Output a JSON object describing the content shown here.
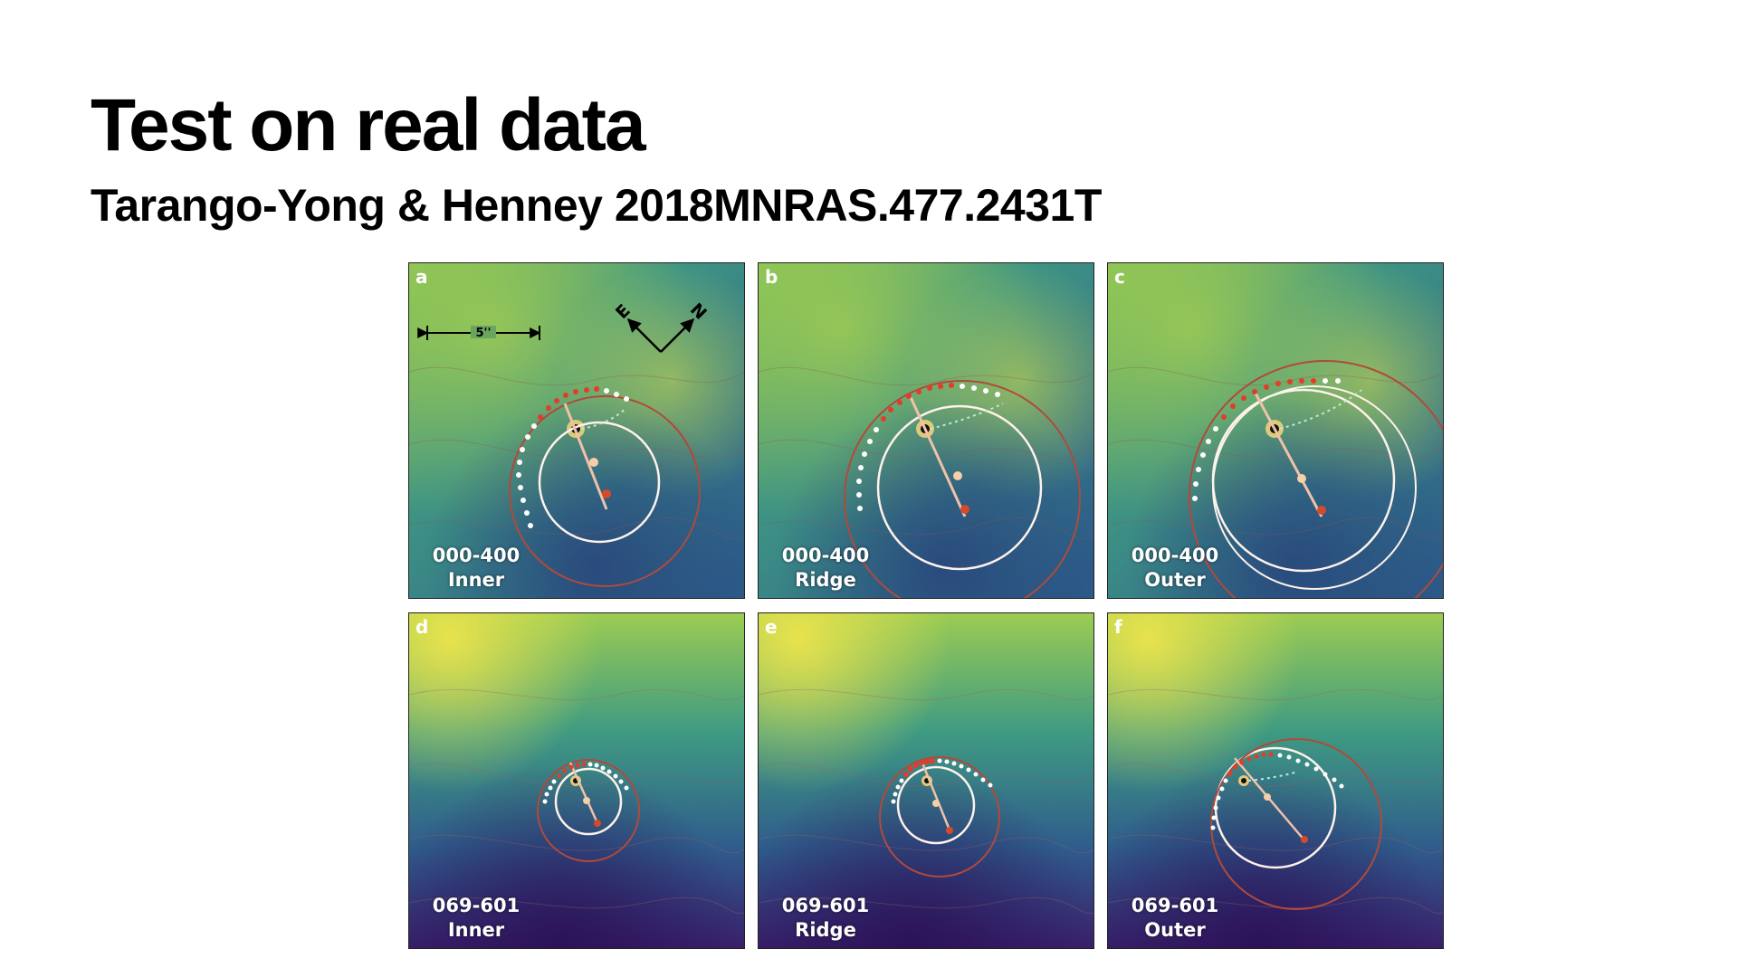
{
  "slide": {
    "title": "Test on real data",
    "subtitle": "Tarango-Yong & Henney 2018MNRAS.477.2431T"
  },
  "figure": {
    "scale_bar_label": "5''",
    "compass": {
      "east": "E",
      "north": "N"
    },
    "panels": [
      {
        "letter": "a",
        "object": "000-400",
        "method": "Inner"
      },
      {
        "letter": "b",
        "object": "000-400",
        "method": "Ridge"
      },
      {
        "letter": "c",
        "object": "000-400",
        "method": "Outer"
      },
      {
        "letter": "d",
        "object": "069-601",
        "method": "Inner"
      },
      {
        "letter": "e",
        "object": "069-601",
        "method": "Ridge"
      },
      {
        "letter": "f",
        "object": "069-601",
        "method": "Outer"
      }
    ]
  }
}
